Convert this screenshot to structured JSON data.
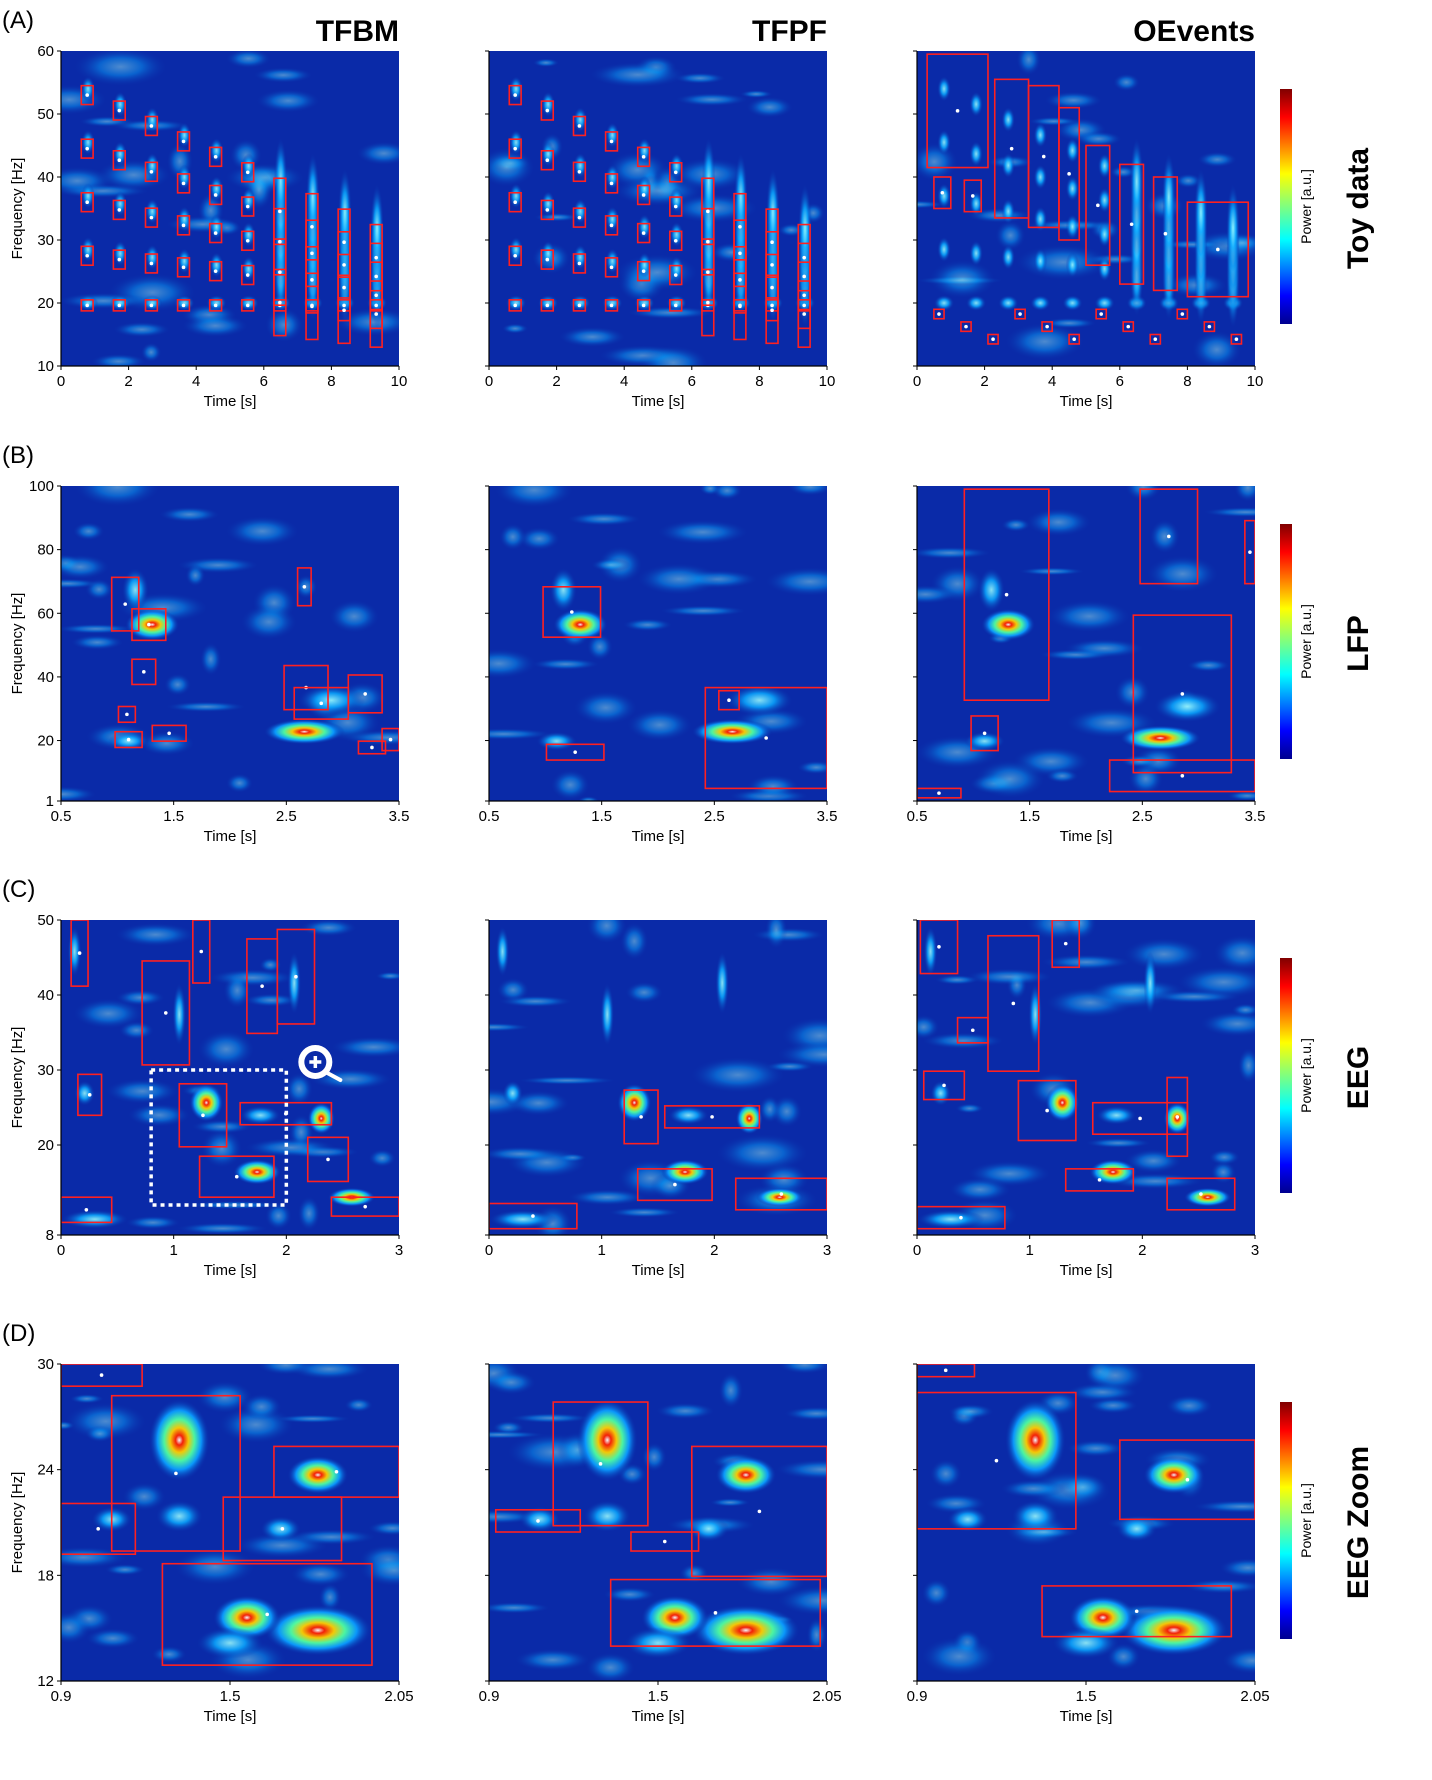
{
  "figure": {
    "methods": [
      "TFBM",
      "TFPF",
      "OEvents"
    ],
    "colorbar_label": "Power [a.u.]",
    "axis_labels": {
      "time": "Time [s]",
      "frequency": "Frequency [Hz]"
    },
    "colors": {
      "box": "#ff2020",
      "background_low": "#00008b",
      "background": "#0a2aa8",
      "contour": "#000000"
    },
    "panels": [
      {
        "id": "A",
        "label": "(A)",
        "row_label": "Toy data",
        "xlim": [
          0,
          10
        ],
        "ylim": [
          10,
          60
        ],
        "xticks": [
          "0",
          "2",
          "4",
          "6",
          "8",
          "10"
        ],
        "yticks": [
          "10",
          "20",
          "30",
          "40",
          "50",
          "60"
        ]
      },
      {
        "id": "B",
        "label": "(B)",
        "row_label": "LFP",
        "xlim": [
          0.5,
          3.5
        ],
        "ylim": [
          1,
          100
        ],
        "xticks": [
          "0.5",
          "1.5",
          "2.5",
          "3.5"
        ],
        "yticks": [
          "1",
          "20",
          "40",
          "60",
          "80",
          "100"
        ]
      },
      {
        "id": "C",
        "label": "(C)",
        "row_label": "EEG",
        "xlim": [
          0,
          3
        ],
        "ylim": [
          8,
          50
        ],
        "xticks": [
          "0",
          "1",
          "2",
          "3"
        ],
        "yticks": [
          "8",
          "20",
          "30",
          "40",
          "50"
        ],
        "zoom_region": {
          "x": [
            0.8,
            2.0
          ],
          "y": [
            12,
            30
          ]
        }
      },
      {
        "id": "D",
        "label": "(D)",
        "row_label": "EEG Zoom",
        "xlim": [
          0.9,
          2.05
        ],
        "ylim": [
          12,
          30
        ],
        "xticks": [
          "0.9",
          "1.5",
          "2.05"
        ],
        "yticks": [
          "12",
          "18",
          "24",
          "30"
        ]
      }
    ]
  }
}
